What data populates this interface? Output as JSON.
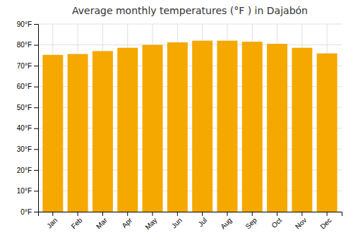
{
  "chart_data": {
    "type": "bar",
    "title": "Average monthly temperatures (°F ) in Dajabón",
    "categories": [
      "Jan",
      "Feb",
      "Mar",
      "Apr",
      "May",
      "Jun",
      "Jul",
      "Aug",
      "Sep",
      "Oct",
      "Nov",
      "Dec"
    ],
    "values": [
      75.2,
      75.6,
      77.0,
      78.6,
      80.0,
      81.2,
      82.0,
      82.0,
      81.5,
      80.5,
      78.6,
      75.9
    ],
    "color": "#F5A800",
    "ylim": [
      0,
      90
    ],
    "yticks": [
      {
        "value": 0,
        "label": "0°F"
      },
      {
        "value": 10,
        "label": "10°F"
      },
      {
        "value": 20,
        "label": "20°F"
      },
      {
        "value": 30,
        "label": "30°F"
      },
      {
        "value": 40,
        "label": "40°F"
      },
      {
        "value": 50,
        "label": "50°F"
      },
      {
        "value": 60,
        "label": "60°F"
      },
      {
        "value": 70,
        "label": "70°F"
      },
      {
        "value": 80,
        "label": "80°F"
      },
      {
        "value": 90,
        "label": "90°F"
      }
    ],
    "grid": true
  }
}
